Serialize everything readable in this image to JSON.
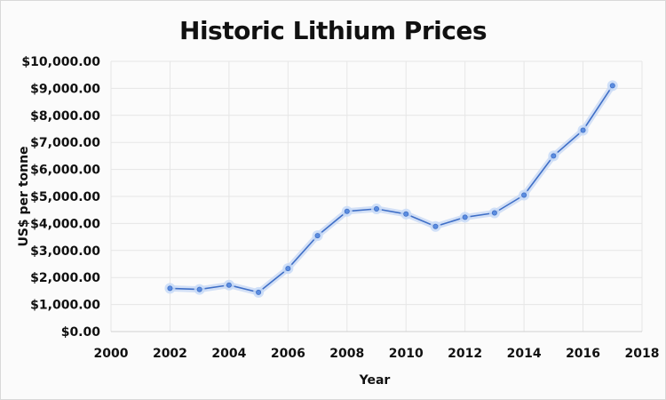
{
  "chart_data": {
    "type": "line",
    "title": "Historic Lithium Prices",
    "xlabel": "Year",
    "ylabel": "US$  per  tonne",
    "xlim": [
      2000,
      2018
    ],
    "ylim": [
      0,
      10000
    ],
    "x_ticks": [
      2000,
      2002,
      2004,
      2006,
      2008,
      2010,
      2012,
      2014,
      2016,
      2018
    ],
    "x_tick_labels": [
      "2000",
      "2002",
      "2004",
      "2006",
      "2008",
      "2010",
      "2012",
      "2014",
      "2016",
      "2018"
    ],
    "y_ticks": [
      0,
      1000,
      2000,
      3000,
      4000,
      5000,
      6000,
      7000,
      8000,
      9000,
      10000
    ],
    "y_tick_labels": [
      "$0.00",
      "$1,000.00",
      "$2,000.00",
      "$3,000.00",
      "$4,000.00",
      "$5,000.00",
      "$6,000.00",
      "$7,000.00",
      "$8,000.00",
      "$9,000.00",
      "$10,000.00"
    ],
    "grid": true,
    "legend": "none",
    "series": [
      {
        "color": "#3f6fc7",
        "x": [
          2002,
          2003,
          2004,
          2005,
          2006,
          2007,
          2008,
          2009,
          2010,
          2011,
          2012,
          2013,
          2014,
          2015,
          2016,
          2017
        ],
        "values": [
          1600,
          1560,
          1720,
          1450,
          2330,
          3550,
          4450,
          4540,
          4350,
          3890,
          4230,
          4390,
          5050,
          6500,
          7450,
          9100
        ]
      }
    ]
  }
}
